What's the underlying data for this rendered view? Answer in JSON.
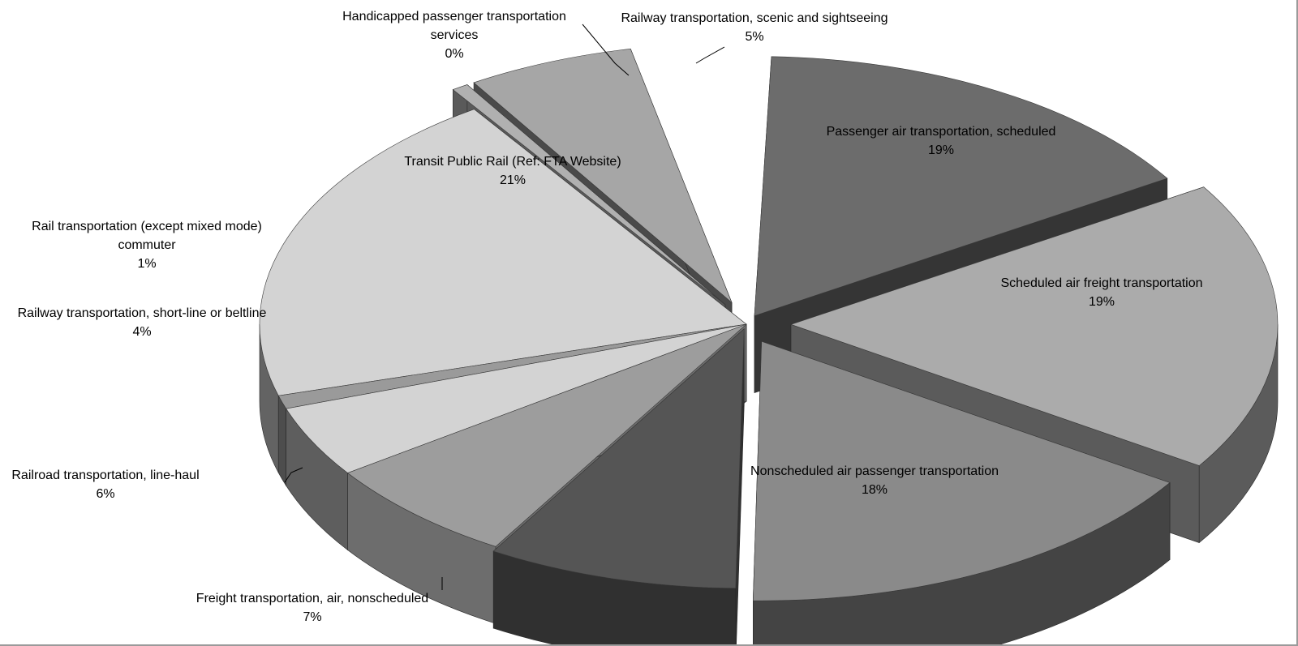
{
  "chart_data": {
    "type": "pie",
    "style": "3d-exploded",
    "grayscale": true,
    "slices": [
      {
        "label": "Passenger air transportation, scheduled",
        "pct_label": "19%",
        "value": 19
      },
      {
        "label": "Scheduled air freight transportation",
        "pct_label": "19%",
        "value": 19
      },
      {
        "label": "Nonscheduled air passenger transportation",
        "pct_label": "18%",
        "value": 18
      },
      {
        "label": "Freight transportation, air, nonscheduled",
        "pct_label": "7%",
        "value": 7
      },
      {
        "label": "Railroad transportation, line-haul",
        "pct_label": "6%",
        "value": 6
      },
      {
        "label": "Railway transportation, short-line or beltline",
        "pct_label": "4%",
        "value": 4
      },
      {
        "label": "Rail transportation (except mixed mode) commuter",
        "pct_label": "1%",
        "value": 1
      },
      {
        "label": "Transit Public Rail (Ref: FTA Website)",
        "pct_label": "21%",
        "value": 21
      },
      {
        "label": "Handicapped passenger transportation services",
        "pct_label": "0%",
        "value": 0
      },
      {
        "label": "Railway transportation, scenic and sightseeing",
        "pct_label": "5%",
        "value": 5
      }
    ],
    "colors": {
      "top": [
        "#6c6c6c",
        "#ababab",
        "#8a8a8a",
        "#555555",
        "#9d9d9d",
        "#d3d3d3",
        "#9a9a9a",
        "#d3d3d3",
        "#b0b0b0",
        "#a6a6a6"
      ],
      "side": [
        "#353535",
        "#5b5b5b",
        "#444444",
        "#303030",
        "#6d6d6d",
        "#5e5e5e",
        "#4d4d4d",
        "#636363",
        "#5a5a5a",
        "#4a4a4a"
      ]
    }
  }
}
